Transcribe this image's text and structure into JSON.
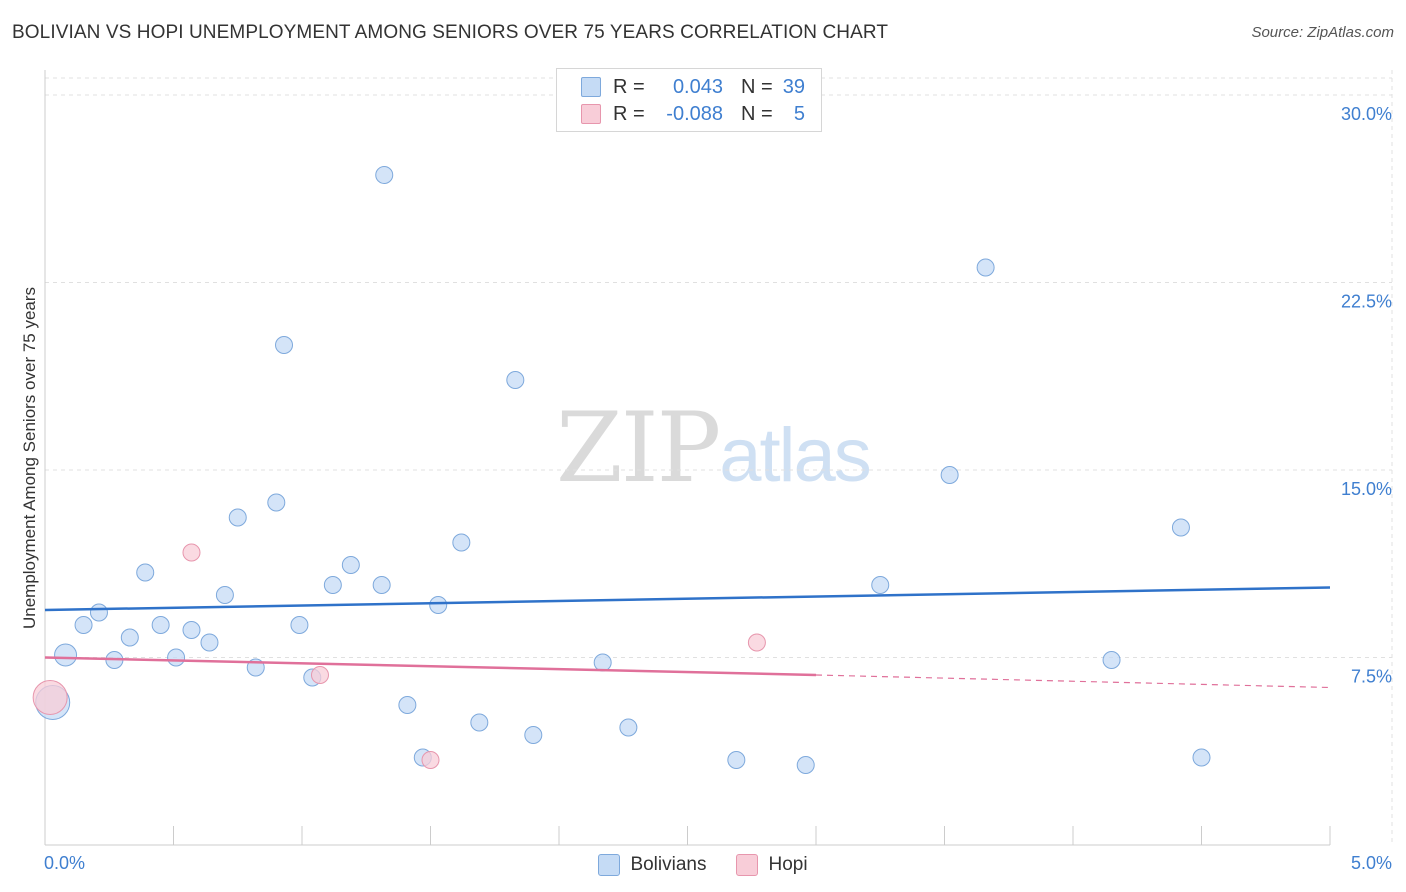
{
  "colors": {
    "bolivian_fill": "#c5dbf5",
    "bolivian_stroke": "#7ea9dc",
    "bolivian_line": "#2f72c9",
    "hopi_fill": "#f8cdd8",
    "hopi_stroke": "#e796ad",
    "hopi_line": "#e0709a",
    "tick_label": "#3f7fd0",
    "grid": "#e0e0e0"
  },
  "chart_data": {
    "type": "scatter",
    "title": "BOLIVIAN VS HOPI UNEMPLOYMENT AMONG SENIORS OVER 75 YEARS CORRELATION CHART",
    "source": "Source: ZipAtlas.com",
    "xlabel": "",
    "ylabel": "Unemployment Among Seniors over 75 years",
    "xlim": [
      0.0,
      5.0
    ],
    "ylim": [
      0.0,
      31.0
    ],
    "x_tick_labels": [
      "0.0%",
      "5.0%"
    ],
    "y_ticks": [
      {
        "value": 7.5,
        "label": "7.5%"
      },
      {
        "value": 15.0,
        "label": "15.0%"
      },
      {
        "value": 22.5,
        "label": "22.5%"
      },
      {
        "value": 30.0,
        "label": "30.0%"
      }
    ],
    "legend": {
      "rows": [
        {
          "r_label": "R =",
          "r_value": "0.043",
          "n_label": "N =",
          "n_value": "39"
        },
        {
          "r_label": "R =",
          "r_value": "-0.088",
          "n_label": "N =",
          "n_value": "5"
        }
      ]
    },
    "series": [
      {
        "name": "Bolivians",
        "trend": {
          "x0": 0.0,
          "y0": 9.4,
          "x1": 5.0,
          "y1": 10.3
        },
        "points": [
          {
            "x": 0.03,
            "y": 5.7,
            "size": "large"
          },
          {
            "x": 0.08,
            "y": 7.6,
            "size": "medium"
          },
          {
            "x": 0.15,
            "y": 8.8
          },
          {
            "x": 0.21,
            "y": 9.3
          },
          {
            "x": 0.27,
            "y": 7.4
          },
          {
            "x": 0.33,
            "y": 8.3
          },
          {
            "x": 0.39,
            "y": 10.9
          },
          {
            "x": 0.45,
            "y": 8.8
          },
          {
            "x": 0.51,
            "y": 7.5
          },
          {
            "x": 0.57,
            "y": 8.6
          },
          {
            "x": 0.64,
            "y": 8.1
          },
          {
            "x": 0.7,
            "y": 10.0
          },
          {
            "x": 0.75,
            "y": 13.1
          },
          {
            "x": 0.82,
            "y": 7.1
          },
          {
            "x": 0.9,
            "y": 13.7
          },
          {
            "x": 0.93,
            "y": 20.0
          },
          {
            "x": 0.99,
            "y": 8.8
          },
          {
            "x": 1.04,
            "y": 6.7
          },
          {
            "x": 1.12,
            "y": 10.4
          },
          {
            "x": 1.19,
            "y": 11.2
          },
          {
            "x": 1.31,
            "y": 10.4
          },
          {
            "x": 1.32,
            "y": 26.8
          },
          {
            "x": 1.41,
            "y": 5.6
          },
          {
            "x": 1.47,
            "y": 3.5
          },
          {
            "x": 1.53,
            "y": 9.6
          },
          {
            "x": 1.62,
            "y": 12.1
          },
          {
            "x": 1.69,
            "y": 4.9
          },
          {
            "x": 1.83,
            "y": 18.6
          },
          {
            "x": 1.9,
            "y": 4.4
          },
          {
            "x": 2.17,
            "y": 7.3
          },
          {
            "x": 2.27,
            "y": 4.7
          },
          {
            "x": 2.69,
            "y": 3.4
          },
          {
            "x": 2.96,
            "y": 3.2
          },
          {
            "x": 3.25,
            "y": 10.4
          },
          {
            "x": 3.52,
            "y": 14.8
          },
          {
            "x": 3.66,
            "y": 23.1
          },
          {
            "x": 4.15,
            "y": 7.4
          },
          {
            "x": 4.42,
            "y": 12.7
          },
          {
            "x": 4.5,
            "y": 3.5
          }
        ]
      },
      {
        "name": "Hopi",
        "trend": {
          "x0": 0.0,
          "y0": 7.5,
          "x1": 3.0,
          "y1": 6.8,
          "dash_to_x": 5.0,
          "dash_to_y": 6.3
        },
        "points": [
          {
            "x": 0.02,
            "y": 5.9,
            "size": "large"
          },
          {
            "x": 0.57,
            "y": 11.7
          },
          {
            "x": 1.07,
            "y": 6.8
          },
          {
            "x": 1.5,
            "y": 3.4
          },
          {
            "x": 2.77,
            "y": 8.1
          }
        ]
      }
    ]
  }
}
